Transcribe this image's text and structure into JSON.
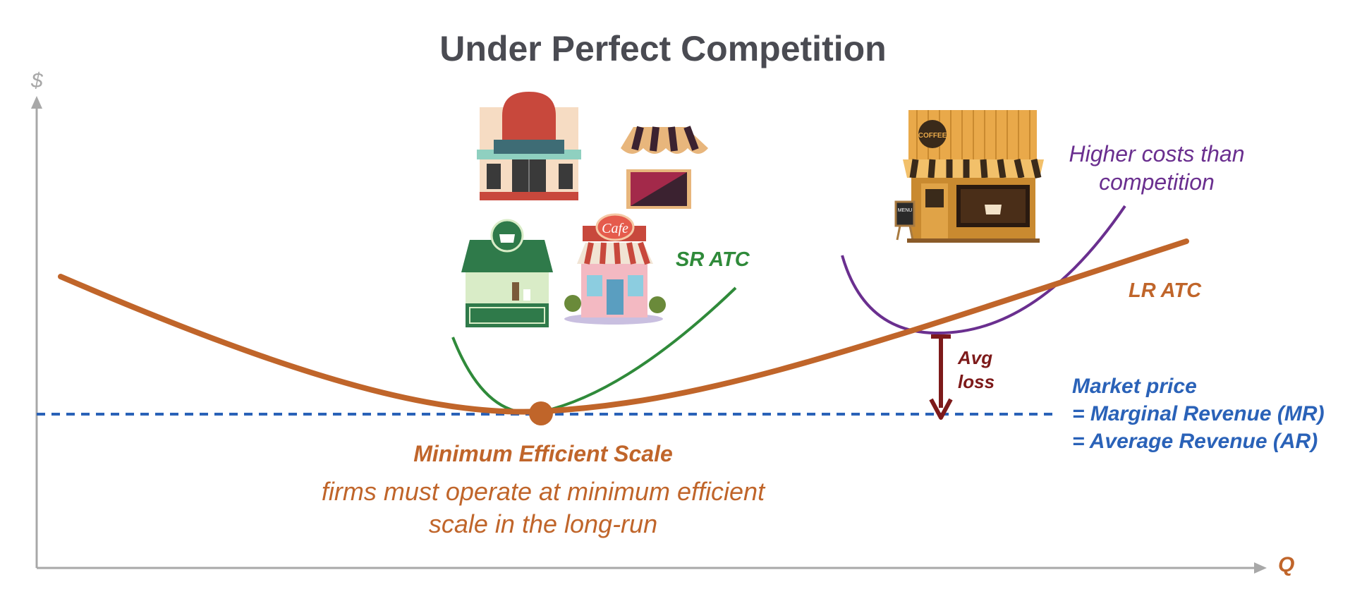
{
  "title": "Under Perfect Competition",
  "axes": {
    "y_label": "$",
    "x_label": "Q"
  },
  "curves": {
    "sr_atc": {
      "label": "SR ATC",
      "color": "#2f8a3a"
    },
    "lr_atc": {
      "label": "LR ATC",
      "color": "#c0652a"
    },
    "higher_cost": {
      "label": "Higher costs than competition",
      "color": "#6a2f8f"
    }
  },
  "market_price": {
    "lines": [
      "Market price",
      "= Marginal Revenue (MR)",
      "= Average Revenue (AR)"
    ],
    "color": "#2a62b8"
  },
  "avg_loss": {
    "lines": [
      "Avg",
      "loss"
    ],
    "color": "#7d1a1a"
  },
  "minimum_efficient_scale": {
    "title": "Minimum Efficient Scale",
    "description": "firms must operate at minimum efficient scale in the long-run"
  },
  "illustrations": {
    "shops": [
      "storefront-icon",
      "awning-stall-icon",
      "coffee-kiosk-icon",
      "cafe-icon"
    ],
    "coffee_shop": {
      "name": "coffee-shop-icon",
      "sign": "COFFEE",
      "menu": "MENU"
    },
    "cafe_sign": "Cafe"
  }
}
